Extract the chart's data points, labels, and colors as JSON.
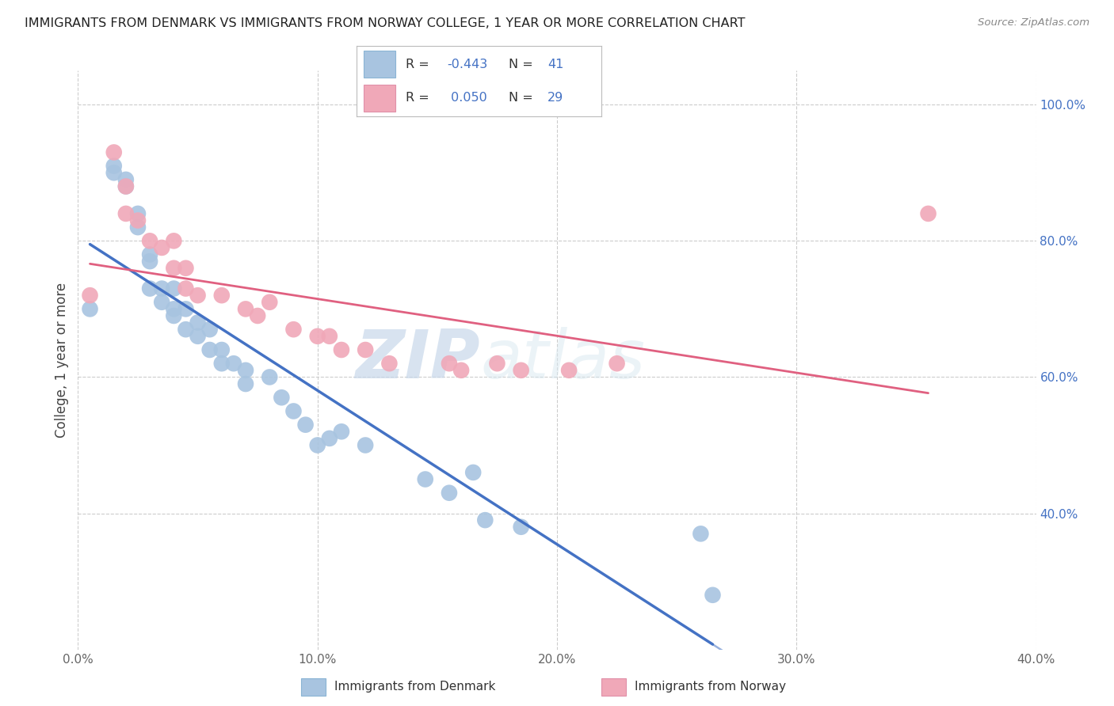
{
  "title": "IMMIGRANTS FROM DENMARK VS IMMIGRANTS FROM NORWAY COLLEGE, 1 YEAR OR MORE CORRELATION CHART",
  "source": "Source: ZipAtlas.com",
  "ylabel": "College, 1 year or more",
  "xlim": [
    0.0,
    0.4
  ],
  "ylim": [
    0.2,
    1.05
  ],
  "xtick_values": [
    0.0,
    0.1,
    0.2,
    0.3,
    0.4
  ],
  "xtick_labels": [
    "0.0%",
    "10.0%",
    "20.0%",
    "30.0%",
    "40.0%"
  ],
  "ytick_right_values": [
    0.4,
    0.6,
    0.8,
    1.0
  ],
  "ytick_right_labels": [
    "40.0%",
    "60.0%",
    "80.0%",
    "100.0%"
  ],
  "legend_labels": [
    "Immigrants from Denmark",
    "Immigrants from Norway"
  ],
  "R_denmark": -0.443,
  "N_denmark": 41,
  "R_norway": 0.05,
  "N_norway": 29,
  "color_denmark": "#a8c4e0",
  "color_norway": "#f0a8b8",
  "line_color_denmark": "#4472c4",
  "line_color_norway": "#e06080",
  "watermark_zip": "ZIP",
  "watermark_atlas": "atlas",
  "background_color": "#ffffff",
  "denmark_x": [
    0.005,
    0.015,
    0.015,
    0.02,
    0.02,
    0.025,
    0.025,
    0.03,
    0.03,
    0.03,
    0.035,
    0.035,
    0.04,
    0.04,
    0.04,
    0.045,
    0.045,
    0.05,
    0.05,
    0.055,
    0.055,
    0.06,
    0.06,
    0.065,
    0.07,
    0.07,
    0.08,
    0.085,
    0.09,
    0.095,
    0.1,
    0.105,
    0.11,
    0.12,
    0.145,
    0.155,
    0.165,
    0.17,
    0.185,
    0.26,
    0.265
  ],
  "denmark_y": [
    0.7,
    0.91,
    0.9,
    0.89,
    0.88,
    0.84,
    0.82,
    0.78,
    0.77,
    0.73,
    0.73,
    0.71,
    0.73,
    0.7,
    0.69,
    0.7,
    0.67,
    0.68,
    0.66,
    0.67,
    0.64,
    0.64,
    0.62,
    0.62,
    0.61,
    0.59,
    0.6,
    0.57,
    0.55,
    0.53,
    0.5,
    0.51,
    0.52,
    0.5,
    0.45,
    0.43,
    0.46,
    0.39,
    0.38,
    0.37,
    0.28
  ],
  "norway_x": [
    0.005,
    0.015,
    0.02,
    0.02,
    0.025,
    0.03,
    0.035,
    0.04,
    0.04,
    0.045,
    0.045,
    0.05,
    0.06,
    0.07,
    0.075,
    0.08,
    0.09,
    0.1,
    0.105,
    0.11,
    0.12,
    0.13,
    0.155,
    0.16,
    0.175,
    0.185,
    0.205,
    0.225,
    0.355
  ],
  "norway_y": [
    0.72,
    0.93,
    0.88,
    0.84,
    0.83,
    0.8,
    0.79,
    0.8,
    0.76,
    0.76,
    0.73,
    0.72,
    0.72,
    0.7,
    0.69,
    0.71,
    0.67,
    0.66,
    0.66,
    0.64,
    0.64,
    0.62,
    0.62,
    0.61,
    0.62,
    0.61,
    0.61,
    0.62,
    0.84
  ],
  "trendline_dk_x0": 0.0,
  "trendline_dk_x1": 0.265,
  "trendline_dk_x1_dashed": 0.4,
  "trendline_no_x0": 0.0,
  "trendline_no_x1": 0.4
}
